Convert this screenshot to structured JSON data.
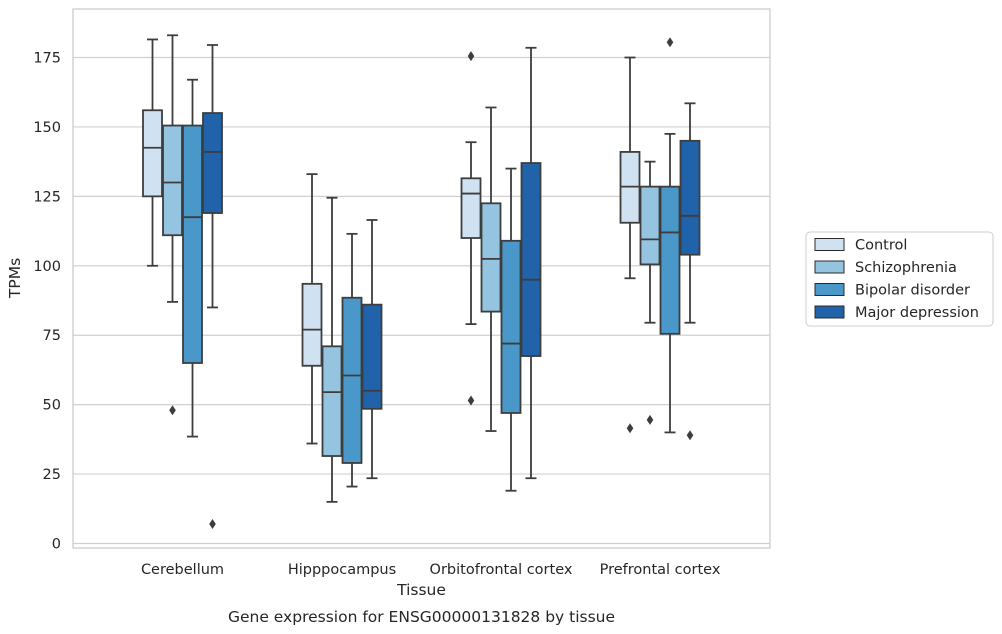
{
  "caption": "Gene expression for ENSG00000131828 by tissue",
  "chart_data": {
    "type": "boxplot",
    "xlabel": "Tissue",
    "ylabel": "TPMs",
    "ylim": [
      -2,
      193
    ],
    "yticks": [
      0,
      25,
      50,
      75,
      100,
      125,
      150,
      175
    ],
    "grid": "horizontal",
    "legend_position": "right",
    "categories": [
      "Cerebellum",
      "Hipppocampus",
      "Orbitofrontal cortex",
      "Prefrontal cortex"
    ],
    "series": [
      {
        "name": "Control",
        "color": "#d0e1f2",
        "boxes": [
          {
            "whisker_low": 100,
            "q1": 125,
            "median": 142.5,
            "q3": 156,
            "whisker_high": 181.5,
            "outliers": []
          },
          {
            "whisker_low": 36,
            "q1": 64,
            "median": 77,
            "q3": 93.5,
            "whisker_high": 133,
            "outliers": []
          },
          {
            "whisker_low": 79,
            "q1": 110,
            "median": 126,
            "q3": 131.5,
            "whisker_high": 144.5,
            "outliers": [
              175.5,
              51.5
            ]
          },
          {
            "whisker_low": 95.5,
            "q1": 115.5,
            "median": 128.5,
            "q3": 141,
            "whisker_high": 175,
            "outliers": [
              41.5
            ]
          }
        ]
      },
      {
        "name": "Schizophrenia",
        "color": "#94c4df",
        "boxes": [
          {
            "whisker_low": 87,
            "q1": 111,
            "median": 130,
            "q3": 150.5,
            "whisker_high": 183,
            "outliers": [
              48
            ]
          },
          {
            "whisker_low": 15,
            "q1": 31.5,
            "median": 54.5,
            "q3": 71,
            "whisker_high": 124.5,
            "outliers": []
          },
          {
            "whisker_low": 40.5,
            "q1": 83.5,
            "median": 102.5,
            "q3": 122.5,
            "whisker_high": 157,
            "outliers": []
          },
          {
            "whisker_low": 79.5,
            "q1": 100.5,
            "median": 109.5,
            "q3": 128.5,
            "whisker_high": 137.5,
            "outliers": [
              44.5
            ]
          }
        ]
      },
      {
        "name": "Bipolar disorder",
        "color": "#4a98c9",
        "boxes": [
          {
            "whisker_low": 38.5,
            "q1": 65,
            "median": 117.5,
            "q3": 150.5,
            "whisker_high": 167,
            "outliers": []
          },
          {
            "whisker_low": 20.5,
            "q1": 29,
            "median": 60.5,
            "q3": 88.5,
            "whisker_high": 111.5,
            "outliers": []
          },
          {
            "whisker_low": 19,
            "q1": 47,
            "median": 72,
            "q3": 109,
            "whisker_high": 135,
            "outliers": []
          },
          {
            "whisker_low": 40,
            "q1": 75.5,
            "median": 112,
            "q3": 128.5,
            "whisker_high": 147.5,
            "outliers": [
              180.5
            ]
          }
        ]
      },
      {
        "name": "Major depression",
        "color": "#2163aa",
        "boxes": [
          {
            "whisker_low": 85,
            "q1": 119,
            "median": 141,
            "q3": 155,
            "whisker_high": 179.5,
            "outliers": [
              7
            ]
          },
          {
            "whisker_low": 23.5,
            "q1": 48.5,
            "median": 55,
            "q3": 86,
            "whisker_high": 116.5,
            "outliers": []
          },
          {
            "whisker_low": 23.5,
            "q1": 67.5,
            "median": 95,
            "q3": 137,
            "whisker_high": 178.5,
            "outliers": []
          },
          {
            "whisker_low": 79.5,
            "q1": 104,
            "median": 118,
            "q3": 145,
            "whisker_high": 158.5,
            "outliers": [
              39
            ]
          }
        ]
      }
    ]
  }
}
